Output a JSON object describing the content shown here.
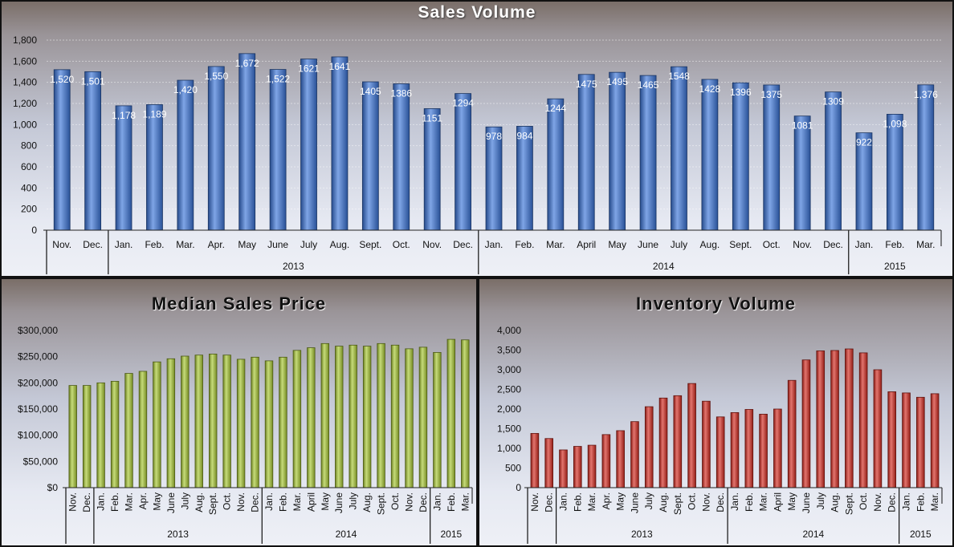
{
  "chart_data": [
    {
      "type": "bar",
      "title": "Sales Volume",
      "categories": [
        "Nov.",
        "Dec.",
        "Jan.",
        "Feb.",
        "Mar.",
        "Apr.",
        "May",
        "June",
        "July",
        "Aug.",
        "Sept.",
        "Oct.",
        "Nov.",
        "Dec.",
        "Jan.",
        "Feb.",
        "Mar.",
        "April",
        "May",
        "June",
        "July",
        "Aug.",
        "Sept.",
        "Oct.",
        "Nov.",
        "Dec.",
        "Jan.",
        "Feb.",
        "Mar."
      ],
      "groups": [
        {
          "label": "",
          "count": 2
        },
        {
          "label": "2013",
          "count": 12
        },
        {
          "label": "2014",
          "count": 12
        },
        {
          "label": "2015",
          "count": 3
        }
      ],
      "values": [
        1520,
        1501,
        1178,
        1189,
        1420,
        1550,
        1672,
        1522,
        1621,
        1641,
        1405,
        1386,
        1151,
        1294,
        978,
        984,
        1244,
        1475,
        1495,
        1465,
        1548,
        1428,
        1396,
        1375,
        1081,
        1309,
        922,
        1098,
        1376
      ],
      "data_labels": [
        "1,520",
        "1,501",
        "1,178",
        "1,189",
        "1,420",
        "1,550",
        "1,672",
        "1,522",
        "1621",
        "1641",
        "1405",
        "1386",
        "1151",
        "1294",
        "978",
        "984",
        "1244",
        "1475",
        "1495",
        "1465",
        "1548",
        "1428",
        "1396",
        "1375",
        "1081",
        "1309",
        "922",
        "1,098",
        "1,376"
      ],
      "yticks": [
        "0",
        "200",
        "400",
        "600",
        "800",
        "1,000",
        "1,200",
        "1,400",
        "1,600",
        "1,800"
      ],
      "ylim": [
        0,
        1800
      ],
      "color": "#3a74d8",
      "grid": true
    },
    {
      "type": "bar",
      "title": "Median Sales Price",
      "categories": [
        "Nov.",
        "Dec.",
        "Jan.",
        "Feb.",
        "Mar.",
        "Apr.",
        "May",
        "June",
        "July",
        "Aug.",
        "Sept.",
        "Oct.",
        "Nov.",
        "Dec.",
        "Jan.",
        "Feb.",
        "Mar.",
        "April",
        "May",
        "June",
        "July",
        "Aug.",
        "Sept.",
        "Oct.",
        "Nov.",
        "Dec.",
        "Jan.",
        "Feb.",
        "Mar."
      ],
      "groups": [
        {
          "label": "",
          "count": 2
        },
        {
          "label": "2013",
          "count": 12
        },
        {
          "label": "2014",
          "count": 12
        },
        {
          "label": "2015",
          "count": 3
        }
      ],
      "values": [
        195000,
        195000,
        200000,
        203000,
        218000,
        222000,
        240000,
        246000,
        251000,
        253000,
        255000,
        253000,
        245000,
        249000,
        242000,
        249000,
        262000,
        267000,
        275000,
        270000,
        272000,
        270000,
        275000,
        272000,
        265000,
        268000,
        258000,
        283000,
        282000
      ],
      "yticks": [
        "$0",
        "$50,000",
        "$100,000",
        "$150,000",
        "$200,000",
        "$250,000",
        "$300,000"
      ],
      "ylim": [
        0,
        300000
      ],
      "color": "#a8c832",
      "grid": false
    },
    {
      "type": "bar",
      "title": "Inventory Volume",
      "categories": [
        "Nov.",
        "Dec.",
        "Jan.",
        "Feb.",
        "Mar.",
        "Apr.",
        "May",
        "June",
        "July",
        "Aug.",
        "Sept.",
        "Oct.",
        "Nov.",
        "Dec.",
        "Jan.",
        "Feb.",
        "Mar.",
        "April",
        "May",
        "June",
        "July",
        "Aug.",
        "Sept.",
        "Oct.",
        "Nov.",
        "Dec.",
        "Jan.",
        "Feb.",
        "Mar."
      ],
      "groups": [
        {
          "label": "",
          "count": 2
        },
        {
          "label": "2013",
          "count": 12
        },
        {
          "label": "2014",
          "count": 12
        },
        {
          "label": "2015",
          "count": 3
        }
      ],
      "values": [
        1380,
        1250,
        960,
        1050,
        1080,
        1350,
        1450,
        1680,
        2060,
        2280,
        2340,
        2650,
        2200,
        1800,
        1910,
        1990,
        1870,
        2000,
        2730,
        3250,
        3480,
        3490,
        3530,
        3430,
        3000,
        2440,
        2410,
        2300,
        2390
      ],
      "yticks": [
        "0",
        "500",
        "1,000",
        "1,500",
        "2,000",
        "2,500",
        "3,000",
        "3,500",
        "4,000"
      ],
      "ylim": [
        0,
        4000
      ],
      "color": "#d42a20",
      "grid": false
    }
  ]
}
